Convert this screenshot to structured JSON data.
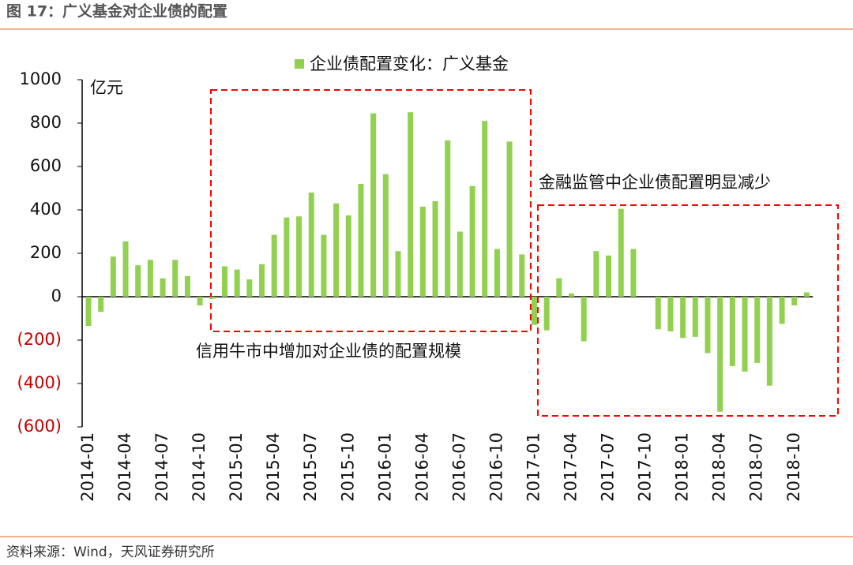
{
  "chart_data": {
    "type": "bar",
    "title": "图 17：广义基金对企业债的配置",
    "y_unit": "亿元",
    "source": "资料来源：Wind，天风证券研究所",
    "annotations": [
      "信用牛市中增加对企业债的配置规模",
      "金融监管中企业债配置明显减少"
    ],
    "categories": [
      "2014-01",
      null,
      null,
      "2014-04",
      null,
      null,
      "2014-07",
      null,
      null,
      "2014-10",
      null,
      null,
      "2015-01",
      null,
      null,
      "2015-04",
      null,
      null,
      "2015-07",
      null,
      null,
      "2015-10",
      null,
      null,
      "2016-01",
      null,
      null,
      "2016-04",
      null,
      null,
      "2016-07",
      null,
      null,
      "2016-10",
      null,
      null,
      "2017-01",
      null,
      null,
      "2017-04",
      null,
      null,
      "2017-07",
      null,
      null,
      "2017-10",
      null,
      null,
      "2018-01",
      null,
      null,
      "2018-04",
      null,
      null,
      "2018-07",
      null,
      null,
      "2018-10",
      null
    ],
    "series": [
      {
        "name": "企业债配置变化：广义基金",
        "color": "#92d050",
        "values": [
          -135,
          -70,
          185,
          255,
          145,
          170,
          85,
          170,
          95,
          -40,
          -10,
          140,
          125,
          80,
          150,
          285,
          365,
          370,
          480,
          285,
          430,
          375,
          520,
          845,
          565,
          210,
          850,
          415,
          440,
          720,
          300,
          510,
          810,
          220,
          715,
          195,
          -130,
          -155,
          85,
          15,
          -205,
          210,
          190,
          405,
          220,
          0,
          -150,
          -160,
          -190,
          -185,
          -260,
          -530,
          -320,
          -345,
          -305,
          -410,
          -125,
          -40,
          20
        ]
      }
    ],
    "ylim": [
      -600,
      1000
    ],
    "yticks": [
      {
        "value": -600,
        "label": "(600)"
      },
      {
        "value": -400,
        "label": "(400)"
      },
      {
        "value": -200,
        "label": "(200)"
      },
      0,
      200,
      400,
      600,
      800,
      1000
    ],
    "negative_tick_color": "#c00000",
    "box_color": "#ff0000"
  }
}
